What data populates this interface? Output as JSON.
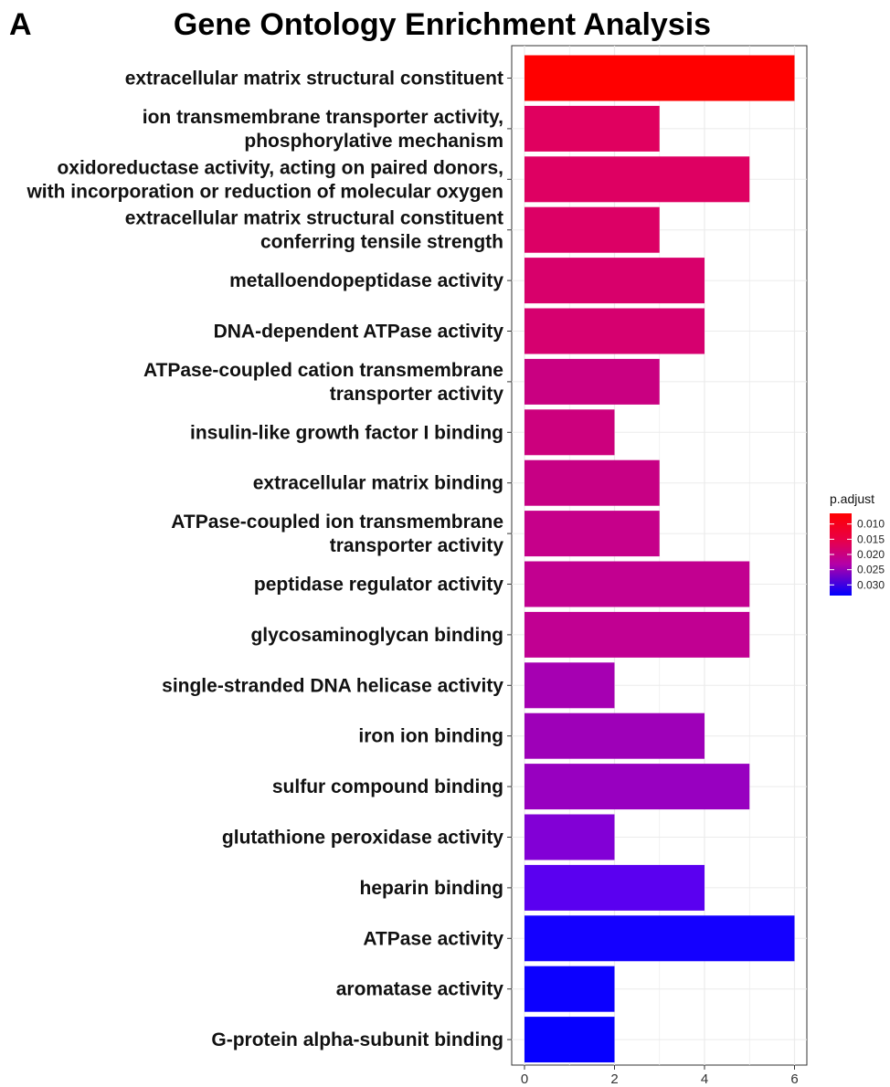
{
  "panel_letter": "A",
  "chart_data": {
    "type": "bar",
    "orientation": "horizontal",
    "title": "Gene Ontology Enrichment Analysis",
    "xlabel": "",
    "ylabel": "",
    "xlim": [
      0,
      6.3
    ],
    "xticks": [
      0,
      2,
      4,
      6
    ],
    "grid": true,
    "categories": [
      [
        "extracellular matrix structural constituent"
      ],
      [
        "ion transmembrane transporter activity,",
        "phosphorylative mechanism"
      ],
      [
        "oxidoreductase activity, acting on paired donors,",
        "with incorporation or reduction of molecular oxygen"
      ],
      [
        "extracellular matrix structural constituent",
        "conferring tensile strength"
      ],
      [
        "metalloendopeptidase activity"
      ],
      [
        "DNA-dependent ATPase activity"
      ],
      [
        "ATPase-coupled cation transmembrane",
        "transporter activity"
      ],
      [
        "insulin-like growth factor I binding"
      ],
      [
        "extracellular matrix binding"
      ],
      [
        "ATPase-coupled ion transmembrane",
        "transporter activity"
      ],
      [
        "peptidase regulator activity"
      ],
      [
        "glycosaminoglycan binding"
      ],
      [
        "single-stranded DNA helicase activity"
      ],
      [
        "iron ion binding"
      ],
      [
        "sulfur compound binding"
      ],
      [
        "glutathione peroxidase activity"
      ],
      [
        "heparin binding"
      ],
      [
        "ATPase activity"
      ],
      [
        "aromatase activity"
      ],
      [
        "G-protein alpha-subunit binding"
      ]
    ],
    "values": [
      6,
      3,
      5,
      3,
      4,
      4,
      3,
      2,
      3,
      3,
      5,
      5,
      2,
      4,
      5,
      2,
      4,
      6,
      2,
      2
    ],
    "colors": [
      "#ff0000",
      "#e0005f",
      "#de0062",
      "#dc0065",
      "#d8006b",
      "#d6006f",
      "#c90081",
      "#cc007d",
      "#c70084",
      "#c6008a",
      "#c20090",
      "#c10092",
      "#a600b2",
      "#9e00b8",
      "#9800c0",
      "#8200d6",
      "#5a00f0",
      "#1400ff",
      "#0c00ff",
      "#0600ff"
    ],
    "legend": {
      "title": "p.adjust",
      "position": "right",
      "ticks": [
        "0.010",
        "0.015",
        "0.020",
        "0.025",
        "0.030"
      ],
      "color_high": "#ff0000",
      "color_low": "#0000ff",
      "range": [
        0.0065,
        0.0335
      ]
    }
  }
}
